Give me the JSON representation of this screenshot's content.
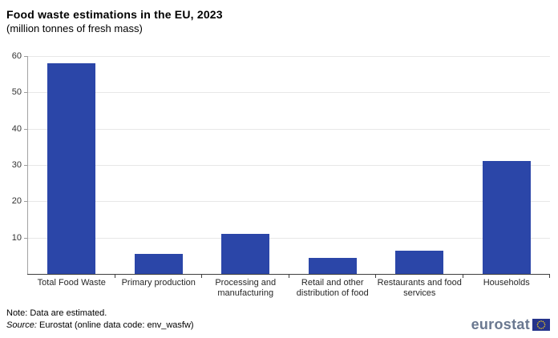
{
  "header": {
    "title": "Food waste estimations in the EU, 2023",
    "subtitle": "(million tonnes of fresh mass)"
  },
  "chart_data": {
    "type": "bar",
    "title": "Food waste estimations in the EU, 2023",
    "subtitle": "(million tonnes of fresh mass)",
    "categories": [
      "Total Food Waste",
      "Primary production",
      "Processing and manufacturing",
      "Retail and other distribution of food",
      "Restaurants and food services",
      "Households"
    ],
    "values": [
      58,
      5.5,
      11,
      4.5,
      6.5,
      31
    ],
    "xlabel": "",
    "ylabel": "",
    "ylim": [
      0,
      60
    ],
    "yticks": [
      10,
      20,
      30,
      40,
      50,
      60
    ],
    "grid": true,
    "legend_position": "none",
    "bar_color": "#2b46a8",
    "gridline_color": "#e7e7e7",
    "xaxis_color": "#3f3f3f",
    "yaxis_color": "#a3a3a3"
  },
  "footer": {
    "note": "Note: Data are estimated.",
    "source_label": "Source:",
    "source_text": "Eurostat (online data code: env_wasfw)",
    "logo_text": "eurostat",
    "logo_text_color": "#6a7890",
    "flag_blue": "#26348b",
    "flag_star_yellow": "#ffd617"
  }
}
